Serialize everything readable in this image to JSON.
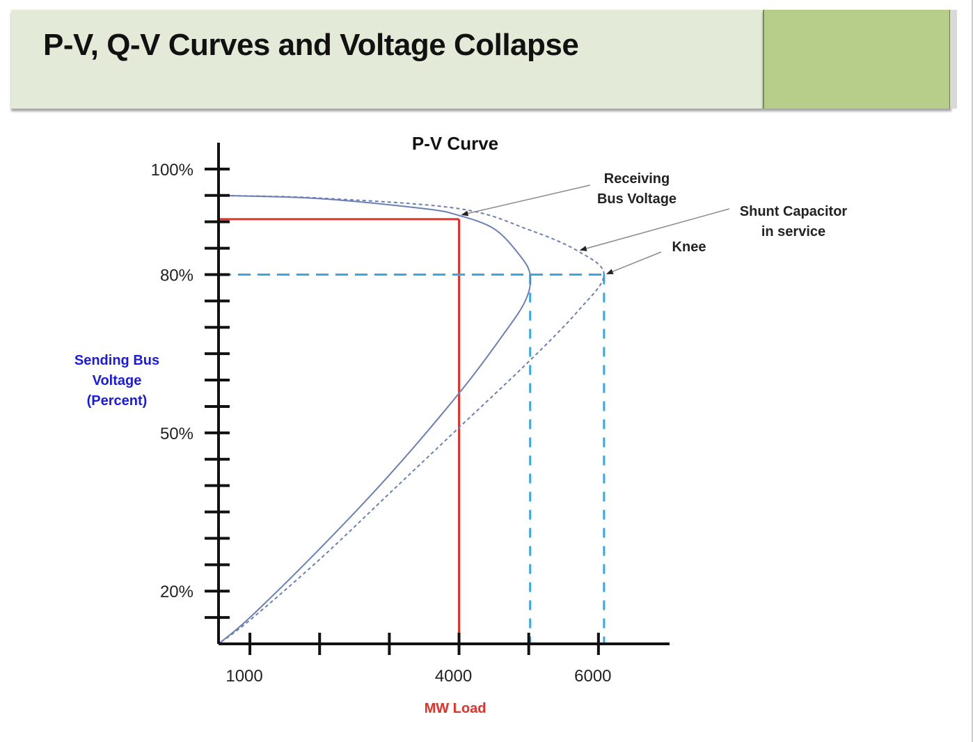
{
  "slide": {
    "title": "P-V, Q-V Curves and Voltage Collapse"
  },
  "colors": {
    "header_band": "#e3ead8",
    "header_accent": "#b7cd8a",
    "curve": "#6a7fb5",
    "operating_line": "#e0322b",
    "knee_line": "#3aa6e6",
    "ylabel": "#1a1ae6",
    "xlabel": "#e0322b"
  },
  "chart_data": {
    "type": "line",
    "title": "P-V Curve",
    "xlabel": "MW Load",
    "ylabel_lines": [
      "Sending Bus",
      "Voltage",
      "(Percent)"
    ],
    "x_tick_labels": [
      {
        "value": 1000,
        "label": "1000"
      },
      {
        "value": 4000,
        "label": "4000"
      },
      {
        "value": 6000,
        "label": "6000"
      }
    ],
    "x_tick_marks": [
      1000,
      2000,
      3000,
      4000,
      5000,
      6000
    ],
    "xlim": [
      550,
      7000
    ],
    "y_tick_labels": [
      {
        "value": 100,
        "label": "100%"
      },
      {
        "value": 80,
        "label": "80%"
      },
      {
        "value": 50,
        "label": "50%"
      },
      {
        "value": 20,
        "label": "20%"
      }
    ],
    "y_tick_marks": [
      15,
      20,
      25,
      30,
      35,
      40,
      45,
      50,
      55,
      60,
      65,
      70,
      75,
      80,
      85,
      90,
      95,
      100
    ],
    "ylim": [
      10,
      105
    ],
    "series": [
      {
        "style": "solid",
        "points": [
          [
            550,
            95
          ],
          [
            2000,
            94.4
          ],
          [
            3500,
            92.5
          ],
          [
            4000,
            91.2
          ],
          [
            4500,
            88.7
          ],
          [
            4850,
            84
          ],
          [
            5020,
            80
          ],
          [
            4950,
            75
          ],
          [
            4600,
            68
          ],
          [
            4000,
            57.5
          ],
          [
            3000,
            42
          ],
          [
            2000,
            28
          ],
          [
            1000,
            15
          ],
          [
            550,
            10
          ]
        ]
      },
      {
        "style": "dashed",
        "points": [
          [
            550,
            95
          ],
          [
            2000,
            94.5
          ],
          [
            4000,
            92.5
          ],
          [
            5000,
            88.5
          ],
          [
            5700,
            84.5
          ],
          [
            6080,
            80
          ],
          [
            5700,
            73
          ],
          [
            5000,
            63.5
          ],
          [
            4000,
            51
          ],
          [
            3000,
            38.5
          ],
          [
            2000,
            26
          ],
          [
            1000,
            14.5
          ],
          [
            550,
            10
          ]
        ]
      }
    ],
    "reference_lines": [
      {
        "name": "operating point",
        "color": "#e0322b",
        "x": 4000,
        "y": 90.5
      },
      {
        "name": "knee (base case)",
        "color": "#3aa6e6",
        "x": 5020,
        "y": 80
      },
      {
        "name": "knee (shunt capacitor)",
        "color": "#3aa6e6",
        "x": 6080,
        "y": 80
      }
    ],
    "annotations": [
      {
        "lines": [
          "Receiving",
          "Bus Voltage"
        ],
        "points_to": [
          4000,
          91.2
        ]
      },
      {
        "lines": [
          "Shunt Capacitor",
          "in service"
        ],
        "points_to": [
          5700,
          84.5
        ]
      },
      {
        "lines": [
          "Knee"
        ],
        "points_to": [
          6080,
          80
        ]
      }
    ]
  }
}
